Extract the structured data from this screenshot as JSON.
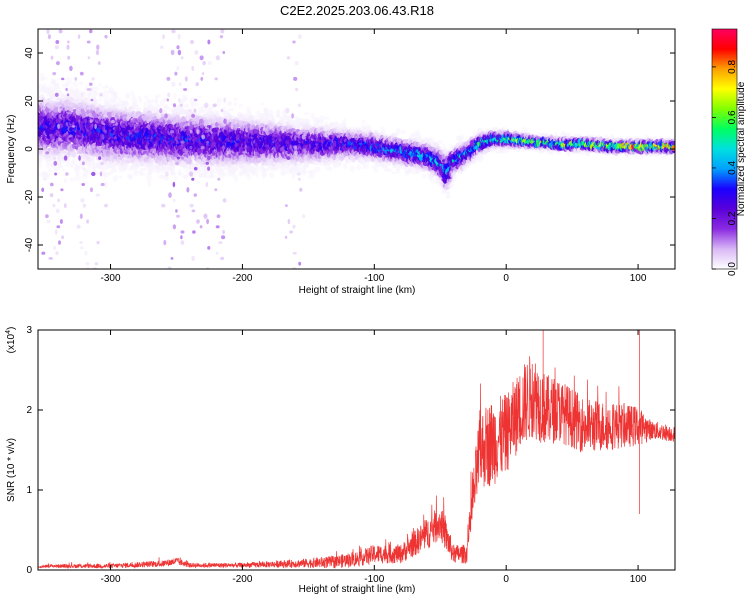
{
  "title": "C2E2.2025.203.06.43.R18",
  "chart_data": [
    {
      "type": "heatmap",
      "name": "spectrogram",
      "xlabel": "Height of straight line (km)",
      "ylabel": "Frequency (Hz)",
      "xlim": [
        -355,
        128
      ],
      "ylim": [
        -50,
        50
      ],
      "xticks": [
        -300,
        -200,
        -100,
        0,
        100
      ],
      "xtick_labels": [
        "-300",
        "-200",
        "-100",
        "0",
        "100"
      ],
      "yticks": [
        -40,
        -20,
        0,
        20,
        40
      ],
      "ytick_labels": [
        "-40",
        "-20",
        "0",
        "20",
        "40"
      ],
      "colorbar": {
        "label": "Normalized spectral amplitude",
        "range": [
          0.0,
          0.95
        ],
        "ticks": [
          0.0,
          0.2,
          0.4,
          0.6,
          0.8
        ],
        "tick_labels": [
          "0.0",
          "0.2",
          "0.4",
          "0.6",
          "0.8"
        ],
        "colormap": [
          "#ffffff",
          "#d9b8f5",
          "#8a2be2",
          "#5a00d8",
          "#1a00ff",
          "#00a0ff",
          "#00e0e0",
          "#00ff60",
          "#80ff00",
          "#ffff00",
          "#ffa000",
          "#ff0000",
          "#ff0060"
        ]
      },
      "ridge": {
        "x": [
          -330,
          -300,
          -250,
          -200,
          -150,
          -120,
          -100,
          -80,
          -60,
          -50,
          -45,
          -40,
          -30,
          -20,
          -10,
          0,
          20,
          40,
          60,
          80,
          100,
          128
        ],
        "y": [
          9,
          6,
          4,
          3,
          2,
          2,
          1,
          -1,
          -3,
          -6,
          -10,
          -5,
          -2,
          2,
          4,
          4,
          3,
          2,
          2,
          1,
          1,
          1
        ],
        "spread": [
          16,
          15,
          14,
          13,
          10,
          8,
          7,
          7,
          7,
          8,
          10,
          7,
          6,
          5,
          4,
          4,
          3,
          3,
          3,
          3,
          3,
          3
        ],
        "peak_amplitude": [
          0.3,
          0.32,
          0.32,
          0.3,
          0.3,
          0.33,
          0.38,
          0.42,
          0.45,
          0.45,
          0.42,
          0.45,
          0.48,
          0.52,
          0.55,
          0.58,
          0.62,
          0.68,
          0.75,
          0.8,
          0.85,
          0.88
        ]
      },
      "vertical_streaks_x": [
        -345,
        -335,
        -320,
        -310,
        -255,
        -245,
        -232,
        -220,
        -160
      ]
    },
    {
      "type": "line",
      "name": "snr",
      "xlabel": "Height of straight line (km)",
      "ylabel": "SNR (10 * v/v)",
      "y_multiplier_label": "(x10",
      "y_multiplier_exponent": "4",
      "y_multiplier_close": ")",
      "xlim": [
        -355,
        128
      ],
      "ylim": [
        0,
        3
      ],
      "xticks": [
        -300,
        -200,
        -100,
        0,
        100
      ],
      "xtick_labels": [
        "-300",
        "-200",
        "-100",
        "0",
        "100"
      ],
      "yticks": [
        0,
        1,
        2,
        3
      ],
      "ytick_labels": [
        "0",
        "1",
        "2",
        "3"
      ],
      "color": "#ee3333",
      "envelope": {
        "x": [
          -355,
          -350,
          -300,
          -260,
          -250,
          -240,
          -200,
          -160,
          -130,
          -110,
          -100,
          -80,
          -60,
          -50,
          -45,
          -40,
          -30,
          -25,
          -20,
          -10,
          0,
          10,
          20,
          30,
          40,
          60,
          80,
          100,
          110,
          128
        ],
        "y": [
          0.03,
          0.05,
          0.05,
          0.08,
          0.11,
          0.06,
          0.06,
          0.08,
          0.1,
          0.15,
          0.2,
          0.2,
          0.45,
          0.6,
          0.4,
          0.2,
          0.2,
          0.9,
          1.5,
          1.6,
          1.7,
          2.0,
          2.2,
          2.0,
          2.0,
          1.8,
          1.8,
          1.8,
          1.75,
          1.7
        ],
        "noise": [
          0.01,
          0.02,
          0.03,
          0.04,
          0.05,
          0.03,
          0.03,
          0.05,
          0.08,
          0.1,
          0.12,
          0.12,
          0.2,
          0.22,
          0.2,
          0.12,
          0.12,
          0.35,
          0.5,
          0.55,
          0.5,
          0.5,
          0.55,
          0.45,
          0.4,
          0.35,
          0.3,
          0.25,
          0.12,
          0.1
        ]
      },
      "spikes": [
        {
          "x": 28,
          "y": 3.0
        },
        {
          "x": 101,
          "y": 3.0
        },
        {
          "x": 101,
          "y": 0.7
        }
      ]
    }
  ]
}
